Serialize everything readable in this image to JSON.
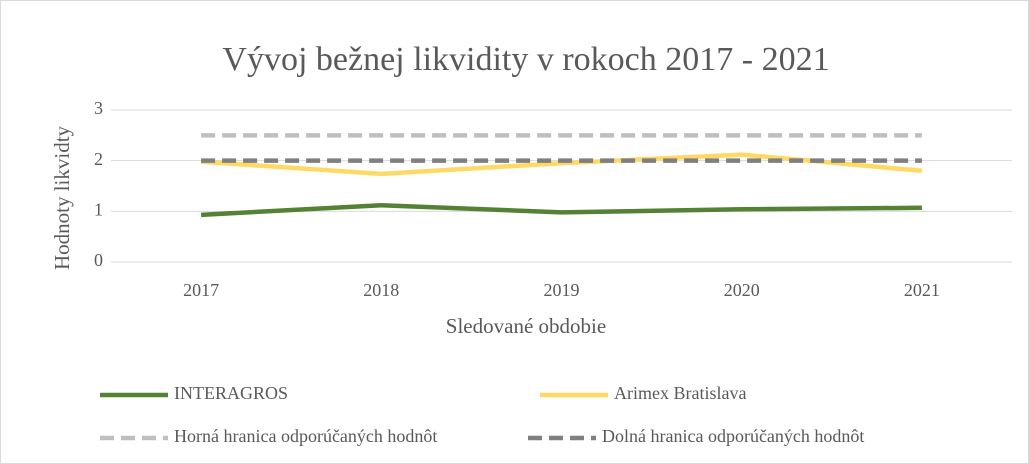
{
  "chart_data": {
    "type": "line",
    "title": "Vývoj bežnej likvidity v rokoch 2017 - 2021",
    "x_label": "Sledované obdobie",
    "y_label": "Hodnoty likvidty",
    "categories": [
      "2017",
      "2018",
      "2019",
      "2020",
      "2021"
    ],
    "series": [
      {
        "name": "INTERAGROS",
        "color": "#548235",
        "line_style": "solid",
        "values": [
          0.93,
          1.12,
          0.98,
          1.04,
          1.07
        ]
      },
      {
        "name": "Arimex Bratislava",
        "color": "#ffd966",
        "line_style": "solid",
        "values": [
          1.98,
          1.74,
          1.95,
          2.12,
          1.8
        ]
      },
      {
        "name": "Horná hranica odporúčaných hodnôt",
        "color": "#bfbfbf",
        "line_style": "dashed",
        "values": [
          2.5,
          2.5,
          2.5,
          2.5,
          2.5
        ]
      },
      {
        "name": "Dolná hranica odporúčaných hodnôt",
        "color": "#7f7f7f",
        "line_style": "dashed",
        "values": [
          2,
          2,
          2,
          2,
          2
        ]
      }
    ],
    "ylim": [
      0,
      3
    ],
    "yticks": [
      0,
      1,
      2,
      3
    ],
    "grid": true,
    "legend": "bottom"
  }
}
